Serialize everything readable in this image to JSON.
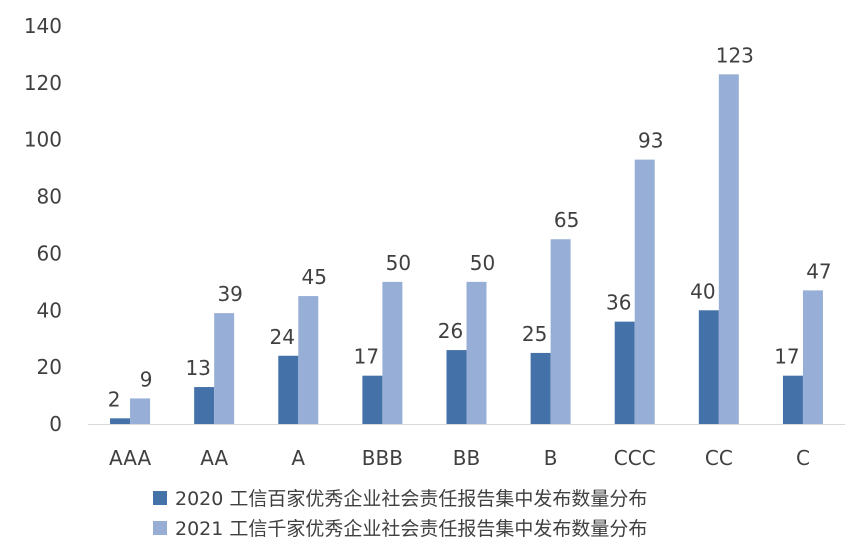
{
  "chart_data": {
    "type": "bar",
    "categories": [
      "AAA",
      "AA",
      "A",
      "BBB",
      "BB",
      "B",
      "CCC",
      "CC",
      "C"
    ],
    "series": [
      {
        "name": "2020 工信百家优秀企业社会责任报告集中发布数量分布",
        "values": [
          2,
          13,
          24,
          17,
          26,
          25,
          36,
          40,
          17
        ],
        "color": "#4472A8"
      },
      {
        "name": "2021 工信千家优秀企业社会责任报告集中发布数量分布",
        "values": [
          9,
          39,
          45,
          50,
          50,
          65,
          93,
          123,
          47
        ],
        "color": "#97AFD6"
      }
    ],
    "ylim": [
      0,
      140
    ],
    "yticks": [
      0,
      20,
      40,
      60,
      80,
      100,
      120,
      140
    ],
    "grid": false,
    "data_labels": true,
    "legend_position": "bottom",
    "axis_color": "#D9D9D9",
    "text_color": "#404040"
  }
}
